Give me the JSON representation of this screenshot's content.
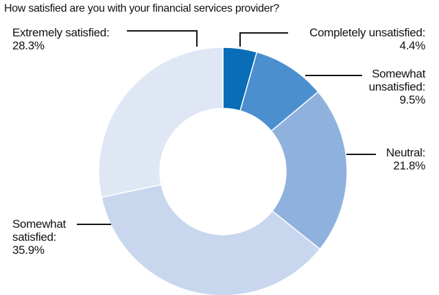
{
  "chart_data": {
    "type": "donut",
    "title": "How satisfied are you with your financial services provider?",
    "categories": [
      "Completely unsatisfied:",
      "Somewhat unsatisfied:",
      "Neutral:",
      "Somewhat satisfied:",
      "Extremely satisfied:"
    ],
    "values": [
      4.4,
      9.5,
      21.8,
      35.9,
      28.3
    ],
    "value_labels": [
      "4.4%",
      "9.5%",
      "21.8%",
      "35.9%",
      "28.3%"
    ],
    "colors": [
      "#0a6db7",
      "#4b8fcf",
      "#8fb1dd",
      "#c8d7ee",
      "#dfe7f4"
    ]
  }
}
